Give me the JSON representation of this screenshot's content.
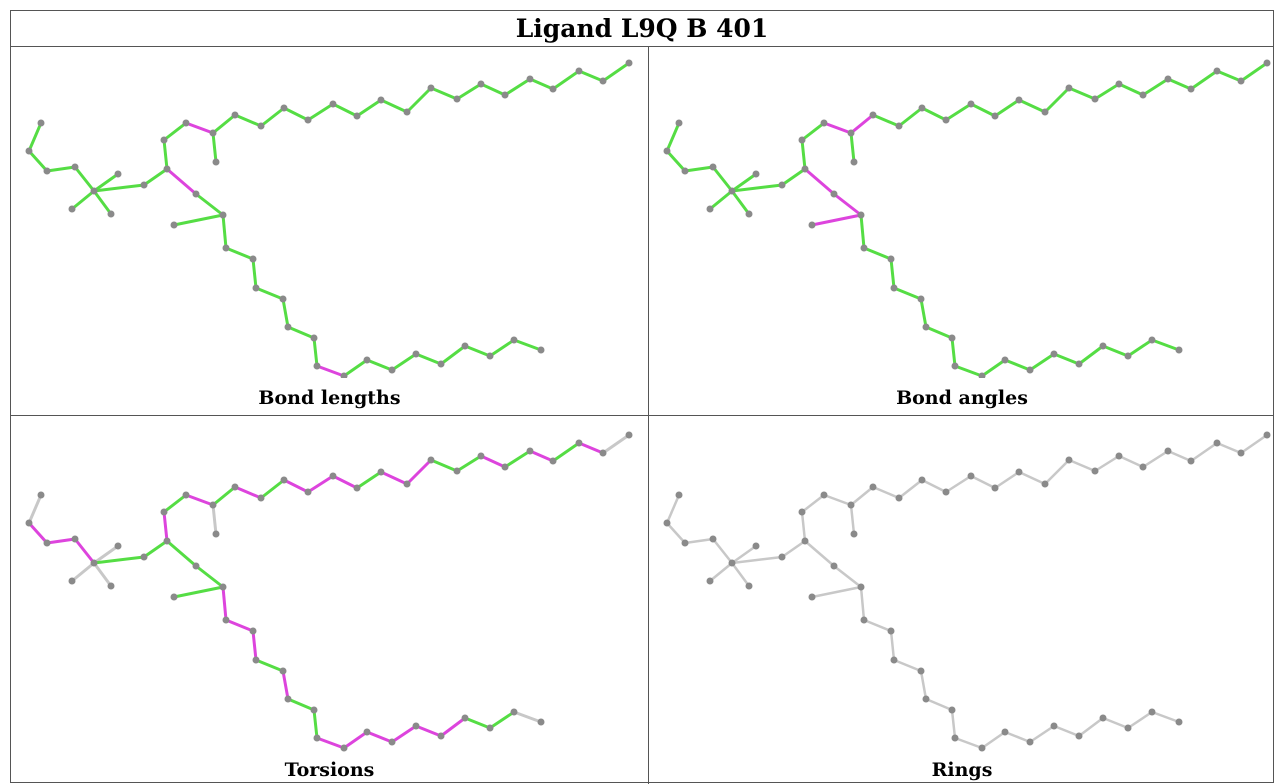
{
  "title": "Ligand L9Q B 401",
  "panels": [
    {
      "caption": "Bond lengths"
    },
    {
      "caption": "Bond angles"
    },
    {
      "caption": "Torsions"
    },
    {
      "caption": "Rings"
    }
  ],
  "colors": {
    "ok_bond": "#55dd44",
    "outlier_bond": "#dd44dd",
    "neutral_bond": "#c8c8c8",
    "atom": "#8a8a8a"
  }
}
